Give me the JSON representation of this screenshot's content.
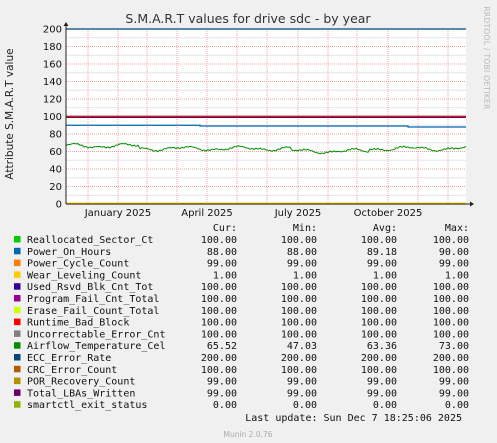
{
  "chart_data": {
    "type": "line",
    "title": "S.M.A.R.T values for drive sdc - by year",
    "ylabel": "Attribute S.M.A.R.T value",
    "xlabel": "",
    "ylim": [
      0,
      200
    ],
    "yticks": [
      0,
      20,
      40,
      60,
      80,
      100,
      120,
      140,
      160,
      180,
      200
    ],
    "xticks": [
      "January 2025",
      "April 2025",
      "July 2025",
      "October 2025"
    ],
    "grid": true,
    "legend_columns": [
      "Cur:",
      "Min:",
      "Avg:",
      "Max:"
    ],
    "series": [
      {
        "name": "Reallocated_Sector_Ct",
        "color": "#00cc00",
        "cur": "100.00",
        "min": "100.00",
        "avg": "100.00",
        "max": "100.00"
      },
      {
        "name": "Power_On_Hours",
        "color": "#0066b3",
        "cur": "88.00",
        "min": "88.00",
        "avg": "89.18",
        "max": "90.00"
      },
      {
        "name": "Power_Cycle_Count",
        "color": "#ff8000",
        "cur": "99.00",
        "min": "99.00",
        "avg": "99.00",
        "max": "99.00"
      },
      {
        "name": "Wear_Leveling_Count",
        "color": "#ffcc00",
        "cur": "1.00",
        "min": "1.00",
        "avg": "1.00",
        "max": "1.00"
      },
      {
        "name": "Used_Rsvd_Blk_Cnt_Tot",
        "color": "#330099",
        "cur": "100.00",
        "min": "100.00",
        "avg": "100.00",
        "max": "100.00"
      },
      {
        "name": "Program_Fail_Cnt_Total",
        "color": "#990099",
        "cur": "100.00",
        "min": "100.00",
        "avg": "100.00",
        "max": "100.00"
      },
      {
        "name": "Erase_Fail_Count_Total",
        "color": "#ccff00",
        "cur": "100.00",
        "min": "100.00",
        "avg": "100.00",
        "max": "100.00"
      },
      {
        "name": "Runtime_Bad_Block",
        "color": "#ff0000",
        "cur": "100.00",
        "min": "100.00",
        "avg": "100.00",
        "max": "100.00"
      },
      {
        "name": "Uncorrectable_Error_Cnt",
        "color": "#808080",
        "cur": "100.00",
        "min": "100.00",
        "avg": "100.00",
        "max": "100.00"
      },
      {
        "name": "Airflow_Temperature_Cel",
        "color": "#008f00",
        "cur": "65.52",
        "min": "47.03",
        "avg": "63.36",
        "max": "73.00"
      },
      {
        "name": "ECC_Error_Rate",
        "color": "#00487d",
        "cur": "200.00",
        "min": "200.00",
        "avg": "200.00",
        "max": "200.00"
      },
      {
        "name": "CRC_Error_Count",
        "color": "#b35a00",
        "cur": "100.00",
        "min": "100.00",
        "avg": "100.00",
        "max": "100.00"
      },
      {
        "name": "POR_Recovery_Count",
        "color": "#b38f00",
        "cur": "99.00",
        "min": "99.00",
        "avg": "99.00",
        "max": "99.00"
      },
      {
        "name": "Total_LBAs_Written",
        "color": "#6b006b",
        "cur": "99.00",
        "min": "99.00",
        "avg": "99.00",
        "max": "99.00"
      },
      {
        "name": "smartctl_exit_status",
        "color": "#8fb300",
        "cur": "0.00",
        "min": "0.00",
        "avg": "0.00",
        "max": "0.00"
      }
    ]
  },
  "watermark": "RRDTOOL / TOBI OETIKER",
  "last_update": "Last update: Sun Dec  7 18:25:06 2025",
  "footer": "Munin 2.0.76"
}
